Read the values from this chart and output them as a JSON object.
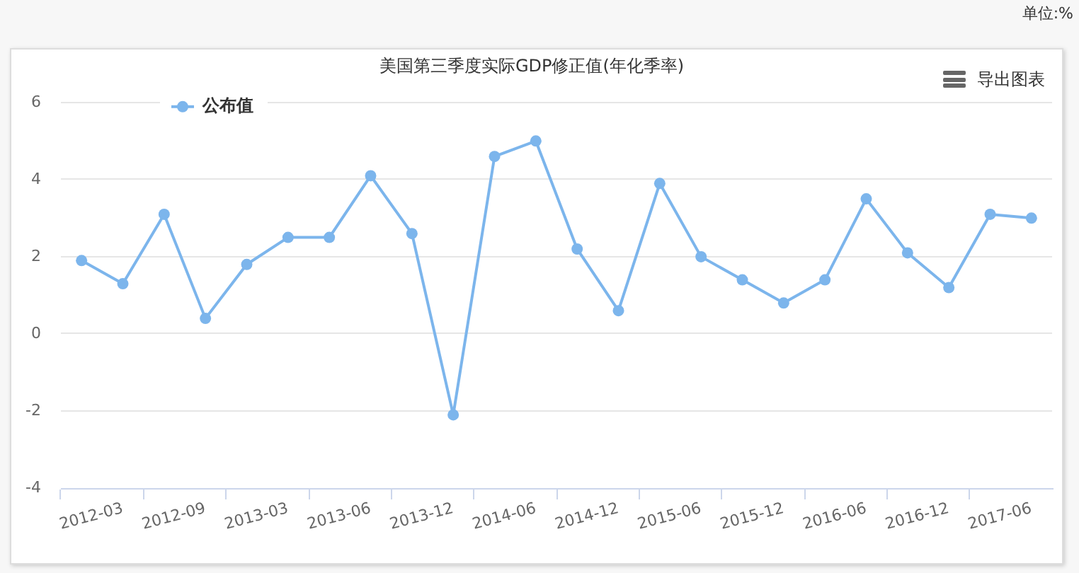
{
  "chart_data": {
    "type": "line",
    "title": "美国第三季度实际GDP修正值(年化季率)",
    "annotations": [
      "单位:%",
      "导出图表"
    ],
    "categories": [
      null,
      "2012-03",
      null,
      "2012-09",
      null,
      "2013-03",
      null,
      "2013-06",
      null,
      "2013-12",
      null,
      "2014-06",
      null,
      "2014-12",
      null,
      "2015-06",
      null,
      "2015-12",
      null,
      "2016-06",
      null,
      "2016-12",
      null,
      "2017-06"
    ],
    "series": [
      {
        "name": "公布值",
        "color": "#7cb5ec",
        "values": [
          1.9,
          1.3,
          3.1,
          0.4,
          1.8,
          2.5,
          2.5,
          4.1,
          2.6,
          -2.1,
          4.6,
          5.0,
          2.2,
          0.6,
          3.9,
          2.0,
          1.4,
          0.8,
          1.4,
          3.5,
          2.1,
          1.2,
          3.1,
          3.0
        ]
      }
    ],
    "ylim": [
      -4,
      6
    ],
    "yticks": [
      -4,
      -2,
      0,
      2,
      4,
      6
    ],
    "grid": "y",
    "legend": "top left",
    "marker": "circle",
    "line_style": "solid"
  }
}
